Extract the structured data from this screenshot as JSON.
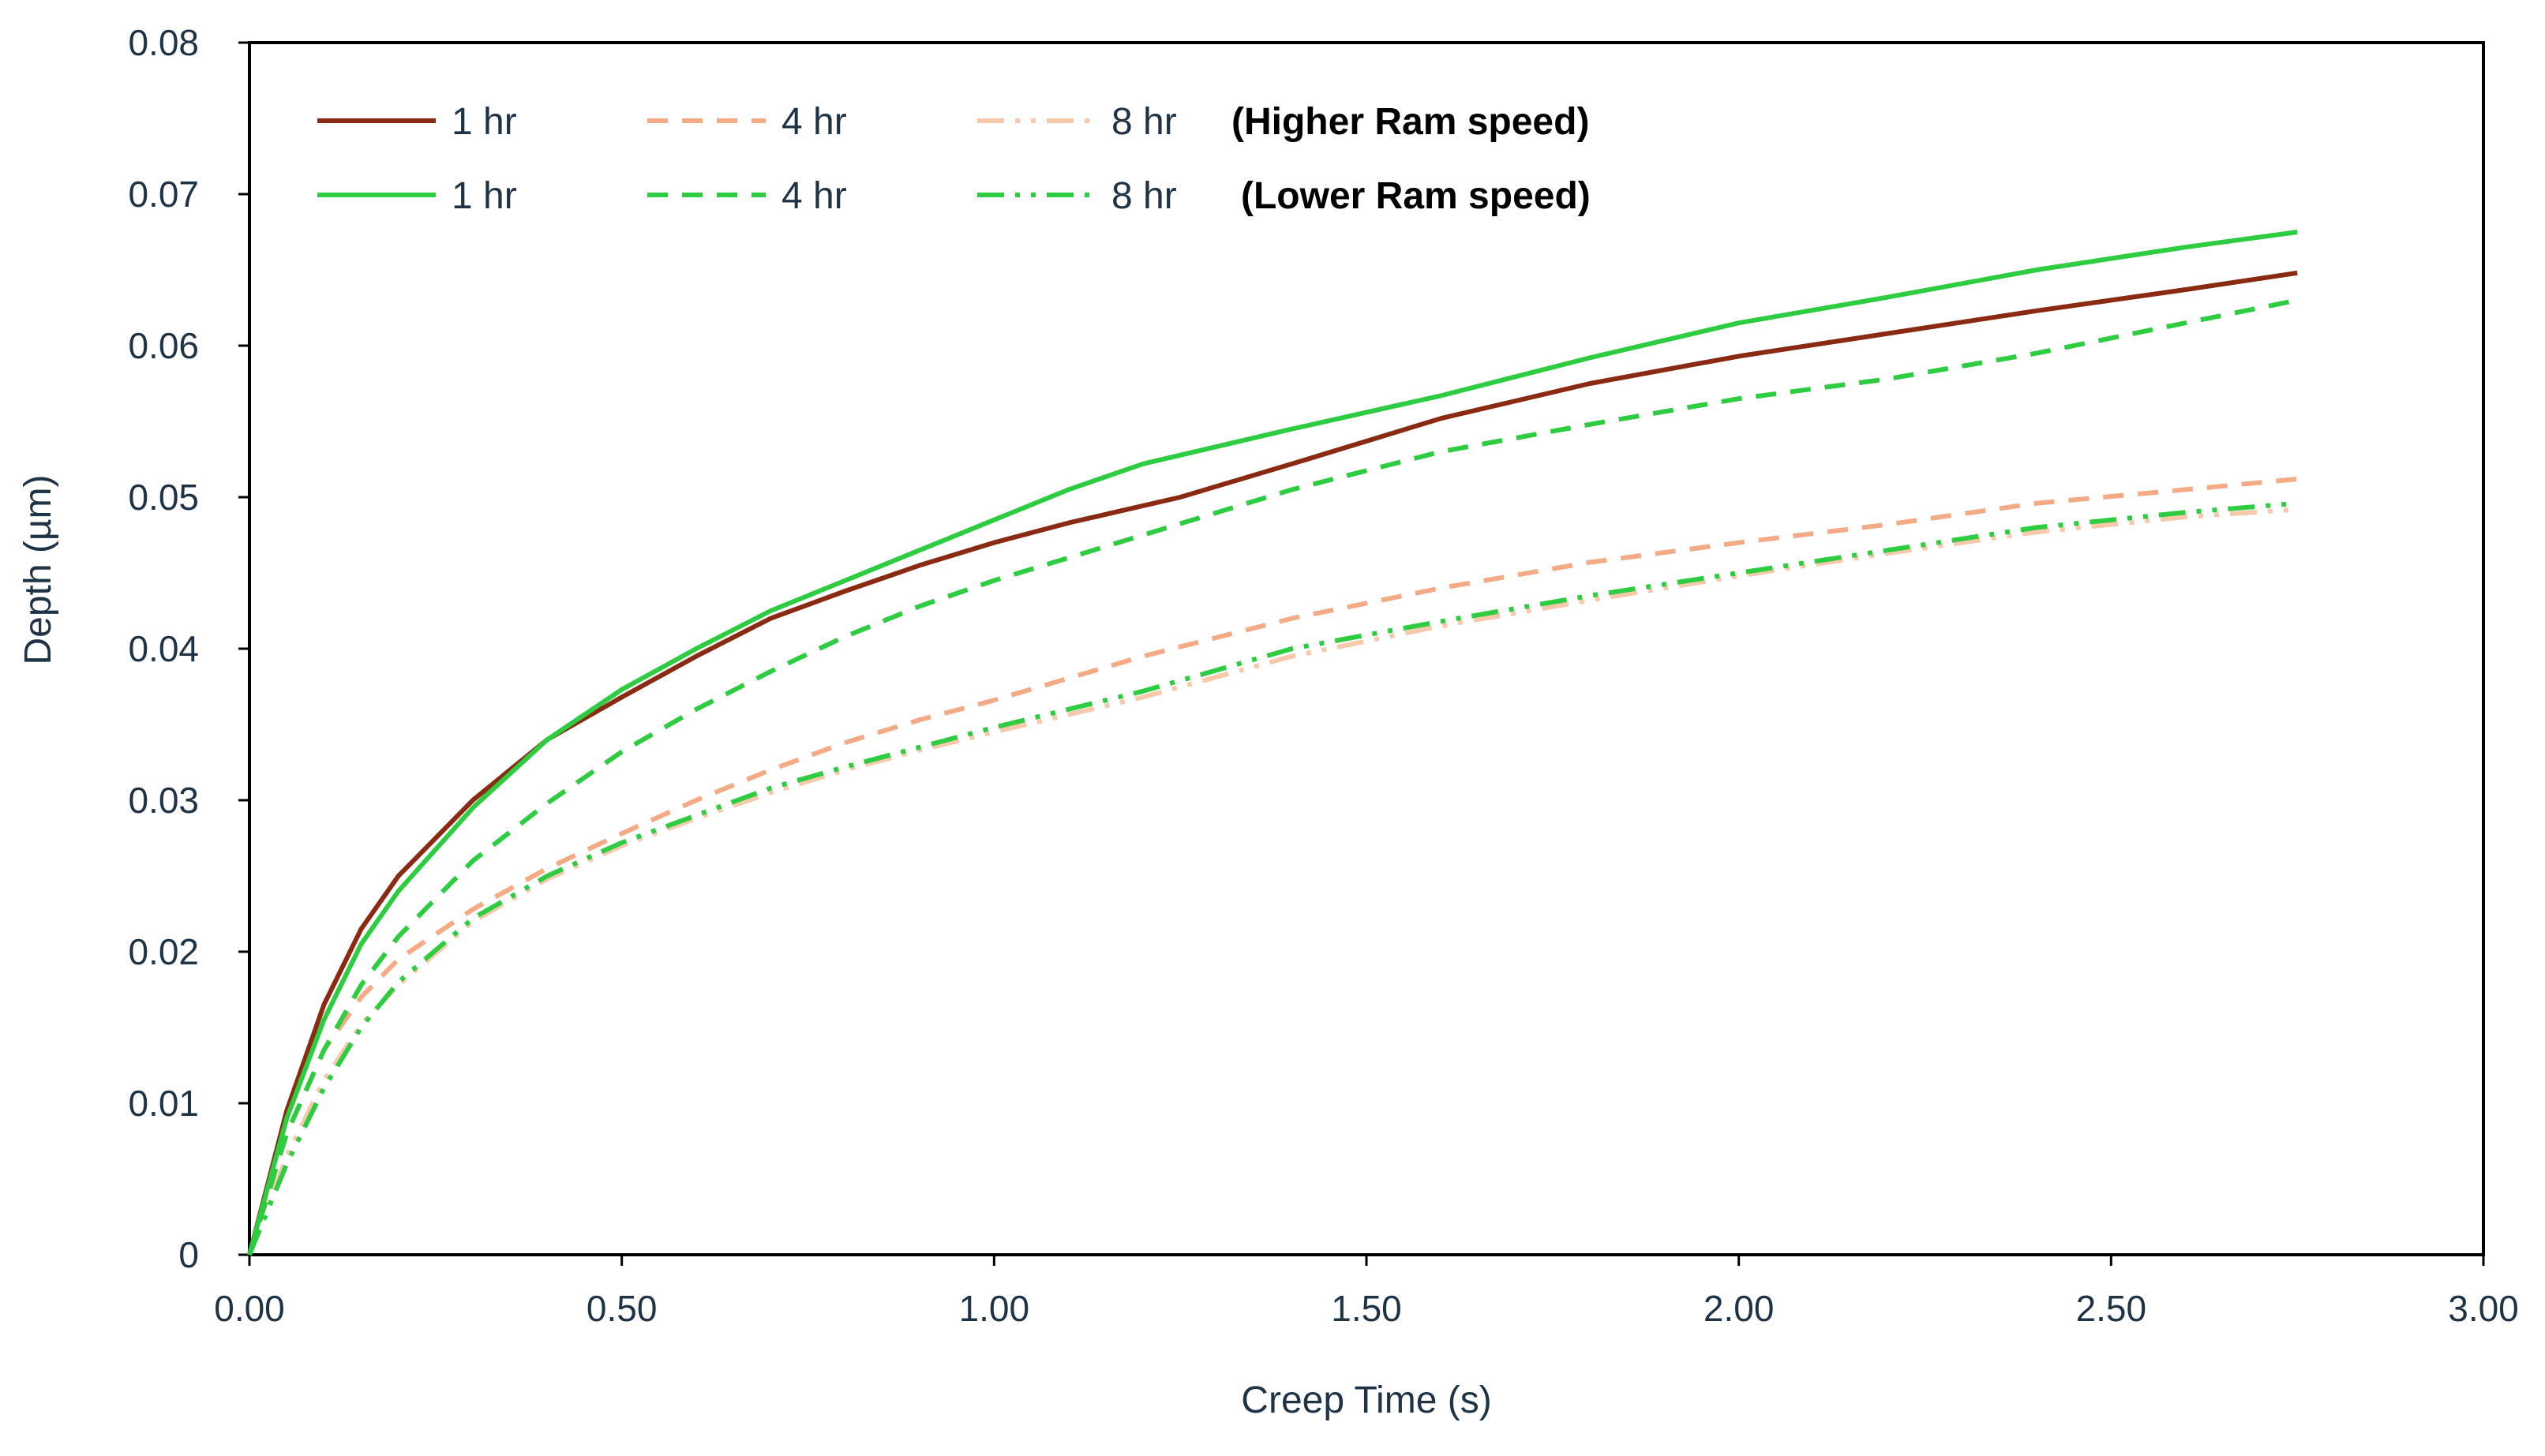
{
  "chart_data": {
    "type": "line",
    "title": "",
    "xlabel": "Creep Time (s)",
    "ylabel": "Depth (µm)",
    "xlim": [
      0,
      3
    ],
    "ylim": [
      0,
      0.08
    ],
    "x_ticks": [
      "0.00",
      "0.50",
      "1.00",
      "1.50",
      "2.00",
      "2.50",
      "3.00"
    ],
    "x_tick_values": [
      0,
      0.5,
      1,
      1.5,
      2,
      2.5,
      3
    ],
    "y_ticks": [
      "0",
      "0.01",
      "0.02",
      "0.03",
      "0.04",
      "0.05",
      "0.06",
      "0.07",
      "0.08"
    ],
    "y_tick_values": [
      0,
      0.01,
      0.02,
      0.03,
      0.04,
      0.05,
      0.06,
      0.07,
      0.08
    ],
    "grid": false,
    "legend_placement": "top-left",
    "legend_groups": [
      {
        "label": "(Higher Ram speed)",
        "series": [
          0,
          1,
          2
        ]
      },
      {
        "label": "(Lower Ram speed)",
        "series": [
          3,
          4,
          5
        ]
      }
    ],
    "series": [
      {
        "name": "1 hr",
        "group": "Higher Ram speed",
        "color": "#8b2a12",
        "dash": "solid",
        "x": [
          0,
          0.05,
          0.1,
          0.15,
          0.2,
          0.3,
          0.4,
          0.5,
          0.6,
          0.7,
          0.8,
          0.9,
          1.0,
          1.1,
          1.25,
          1.4,
          1.6,
          1.8,
          2.0,
          2.2,
          2.4,
          2.6,
          2.75
        ],
        "values": [
          0,
          0.0095,
          0.0165,
          0.0215,
          0.025,
          0.03,
          0.034,
          0.0368,
          0.0395,
          0.042,
          0.0438,
          0.0455,
          0.047,
          0.0483,
          0.05,
          0.0522,
          0.0552,
          0.0575,
          0.0593,
          0.0608,
          0.0623,
          0.0637,
          0.0648
        ]
      },
      {
        "name": "4 hr",
        "group": "Higher Ram speed",
        "color": "#f4aa84",
        "dash": "dashed",
        "x": [
          0,
          0.05,
          0.1,
          0.15,
          0.2,
          0.3,
          0.4,
          0.5,
          0.6,
          0.7,
          0.8,
          0.9,
          1.0,
          1.2,
          1.4,
          1.6,
          1.8,
          2.0,
          2.2,
          2.4,
          2.6,
          2.75
        ],
        "values": [
          0,
          0.008,
          0.0135,
          0.017,
          0.0195,
          0.0228,
          0.0255,
          0.0278,
          0.03,
          0.032,
          0.0338,
          0.0353,
          0.0366,
          0.0395,
          0.042,
          0.044,
          0.0457,
          0.047,
          0.0482,
          0.0496,
          0.0505,
          0.0512
        ]
      },
      {
        "name": "8 hr",
        "group": "Higher Ram speed",
        "color": "#f8c8aa",
        "dash": "dashdot",
        "x": [
          0,
          0.05,
          0.1,
          0.15,
          0.2,
          0.3,
          0.4,
          0.5,
          0.6,
          0.7,
          0.8,
          0.9,
          1.0,
          1.2,
          1.4,
          1.6,
          1.8,
          2.0,
          2.2,
          2.4,
          2.6,
          2.75
        ],
        "values": [
          0,
          0.0065,
          0.0115,
          0.0152,
          0.0178,
          0.022,
          0.0248,
          0.027,
          0.0288,
          0.0305,
          0.032,
          0.0333,
          0.0345,
          0.0368,
          0.0395,
          0.0415,
          0.0432,
          0.0448,
          0.0463,
          0.0477,
          0.0487,
          0.0492
        ]
      },
      {
        "name": "1 hr",
        "group": "Lower Ram speed",
        "color": "#2ecc40",
        "dash": "solid",
        "x": [
          0,
          0.05,
          0.1,
          0.15,
          0.2,
          0.3,
          0.4,
          0.5,
          0.6,
          0.7,
          0.8,
          0.9,
          1.0,
          1.1,
          1.2,
          1.4,
          1.6,
          1.8,
          2.0,
          2.2,
          2.4,
          2.6,
          2.75
        ],
        "values": [
          0,
          0.009,
          0.0155,
          0.0205,
          0.024,
          0.0295,
          0.034,
          0.0373,
          0.04,
          0.0425,
          0.0445,
          0.0465,
          0.0485,
          0.0505,
          0.0522,
          0.0545,
          0.0567,
          0.0592,
          0.0615,
          0.0632,
          0.065,
          0.0665,
          0.0675
        ]
      },
      {
        "name": "4 hr",
        "group": "Lower Ram speed",
        "color": "#2ecc40",
        "dash": "dashed",
        "x": [
          0,
          0.05,
          0.1,
          0.15,
          0.2,
          0.3,
          0.4,
          0.5,
          0.6,
          0.7,
          0.8,
          0.9,
          1.0,
          1.2,
          1.4,
          1.6,
          1.8,
          2.0,
          2.2,
          2.4,
          2.6,
          2.75
        ],
        "values": [
          0,
          0.008,
          0.0135,
          0.0178,
          0.021,
          0.026,
          0.0298,
          0.0332,
          0.036,
          0.0385,
          0.0408,
          0.0428,
          0.0445,
          0.0475,
          0.0505,
          0.053,
          0.0548,
          0.0565,
          0.0578,
          0.0595,
          0.0615,
          0.063
        ]
      },
      {
        "name": "8 hr",
        "group": "Lower Ram speed",
        "color": "#2ecc40",
        "dash": "dashdot",
        "x": [
          0,
          0.05,
          0.1,
          0.15,
          0.2,
          0.3,
          0.4,
          0.5,
          0.6,
          0.7,
          0.8,
          0.9,
          1.0,
          1.2,
          1.4,
          1.6,
          1.8,
          2.0,
          2.2,
          2.4,
          2.6,
          2.75
        ],
        "values": [
          0,
          0.006,
          0.011,
          0.015,
          0.018,
          0.0222,
          0.025,
          0.0272,
          0.029,
          0.0308,
          0.0322,
          0.0335,
          0.0348,
          0.0372,
          0.04,
          0.0418,
          0.0435,
          0.045,
          0.0465,
          0.048,
          0.049,
          0.0496
        ]
      }
    ]
  }
}
